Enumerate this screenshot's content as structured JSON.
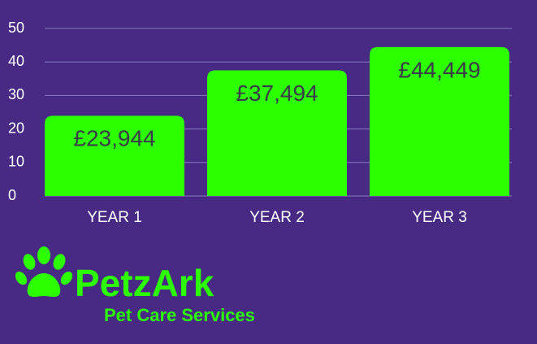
{
  "chart_data": {
    "type": "bar",
    "categories": [
      "YEAR 1",
      "YEAR 2",
      "YEAR 3"
    ],
    "values": [
      23.944,
      37.494,
      44.449
    ],
    "value_labels": [
      "£23,944",
      "£37,494",
      "£44,449"
    ],
    "color": "#2bff00",
    "ylim": [
      0,
      50
    ],
    "yticks": [
      0,
      10,
      20,
      30,
      40,
      50
    ],
    "grid": true
  },
  "logo": {
    "name": "PetzArk",
    "tagline": "Pet Care Services"
  }
}
